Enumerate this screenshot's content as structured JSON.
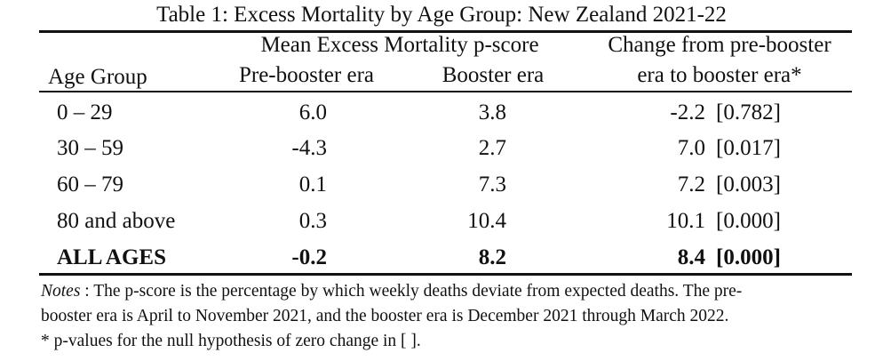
{
  "title": "Table 1: Excess Mortality by Age Group: New Zealand 2021-22",
  "header": {
    "group_mean": "Mean Excess Mortality p-score",
    "change_line1": "Change from pre-booster",
    "change_line2": "era to booster era*",
    "age_group": "Age Group",
    "pre_booster": "Pre-booster era",
    "booster": "Booster era"
  },
  "rows": [
    {
      "age": "0 – 29",
      "pre": "6.0",
      "booster": "3.8",
      "change": "-2.2",
      "p": "[0.782]"
    },
    {
      "age": "30 – 59",
      "pre": "-4.3",
      "booster": "2.7",
      "change": "7.0",
      "p": "[0.017]"
    },
    {
      "age": "60 – 79",
      "pre": "0.1",
      "booster": "7.3",
      "change": "7.2",
      "p": "[0.003]"
    },
    {
      "age": "80 and above",
      "pre": "0.3",
      "booster": "10.4",
      "change": "10.1",
      "p": "[0.000]"
    }
  ],
  "total": {
    "age": "ALL AGES",
    "pre": "-0.2",
    "booster": "8.2",
    "change": "8.4",
    "p": "[0.000]"
  },
  "notes": {
    "label": "Notes",
    "text1": " : The p-score is the percentage by which weekly deaths deviate from expected deaths. The pre-",
    "text2": "booster era is April to November 2021, and the booster era is December 2021 through March 2022.",
    "text3": "* p-values for the null hypothesis of zero change in [ ]."
  }
}
